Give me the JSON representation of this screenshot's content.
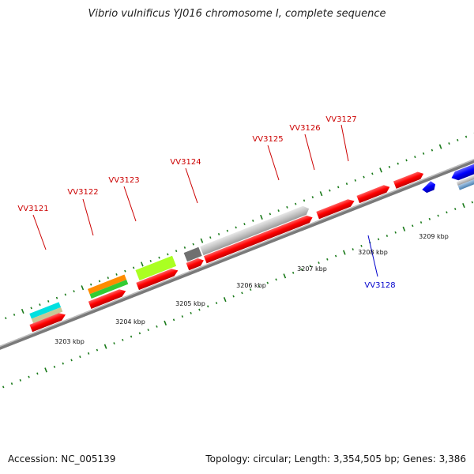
{
  "header": {
    "title": "Vibrio vulnificus YJ016 chromosome I, complete sequence"
  },
  "footer": {
    "accession": "Accession: NC_005139",
    "summary": "Topology: circular; Length: 3,354,505 bp; Genes: 3,386"
  },
  "colors": {
    "forward_gene": "#ff0000",
    "reverse_gene": "#0000ff",
    "gene_label_forward": "#cc0000",
    "gene_label_reverse": "#0000cc",
    "tick_green": "#1a7a1a",
    "backbone": "#777777"
  },
  "gene_labels": [
    {
      "text": "VV3121",
      "strand": "forward"
    },
    {
      "text": "VV3122",
      "strand": "forward"
    },
    {
      "text": "VV3123",
      "strand": "forward"
    },
    {
      "text": "VV3124",
      "strand": "forward"
    },
    {
      "text": "VV3125",
      "strand": "forward"
    },
    {
      "text": "VV3126",
      "strand": "forward"
    },
    {
      "text": "VV3127",
      "strand": "forward"
    },
    {
      "text": "VV3128",
      "strand": "reverse"
    }
  ],
  "kbp_labels": [
    "3203 kbp",
    "3204 kbp",
    "3205 kbp",
    "3206 kbp",
    "3207 kbp",
    "3208 kbp",
    "3209 kbp"
  ]
}
